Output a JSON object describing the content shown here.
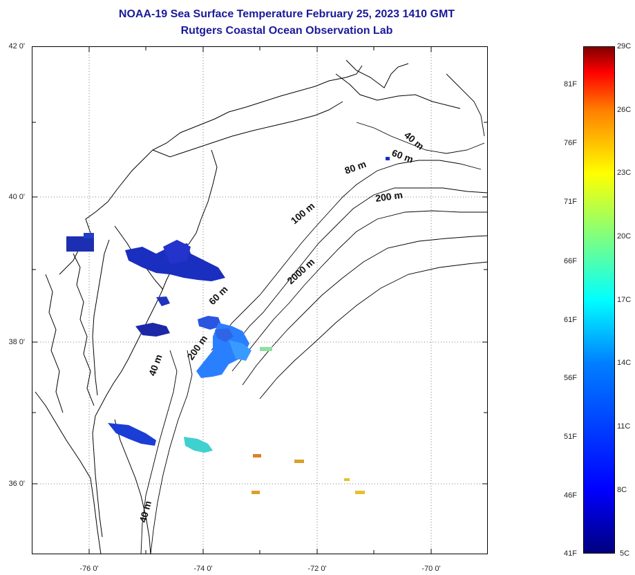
{
  "title": {
    "line1": "NOAA-19 Sea Surface Temperature February 25, 2023 1410 GMT",
    "line2": "Rutgers Coastal Ocean Observation Lab"
  },
  "axes": {
    "lat_labels": [
      "42 0'",
      "40 0'",
      "38 0'",
      "36 0'"
    ],
    "lon_labels": [
      "-76 0'",
      "-74 0'",
      "-72 0'",
      "-70 0'"
    ]
  },
  "isobaths": {
    "labels": [
      "40 m",
      "60 m",
      "80 m",
      "200 m",
      "100 m",
      "2000 m",
      "60 m",
      "200 m",
      "40 m",
      "40 m"
    ]
  },
  "colorbar": {
    "celsius_labels": [
      "29C",
      "26C",
      "23C",
      "20C",
      "17C",
      "14C",
      "11C",
      "8C",
      "5C"
    ],
    "fahrenheit_labels": [
      "81F",
      "76F",
      "71F",
      "66F",
      "61F",
      "56F",
      "51F",
      "46F",
      "41F"
    ],
    "range_c": [
      5,
      29
    ],
    "colormap": [
      "#00007f",
      "#0000ff",
      "#007fff",
      "#00ffff",
      "#7fff7f",
      "#ffff00",
      "#ff7f00",
      "#ff0000",
      "#7f0000"
    ]
  },
  "colors": {
    "title": "#1a1a9a",
    "cold_water": "#1a2fbf",
    "cool_water": "#2a7fff",
    "warm_patch": "#ff9a2a"
  }
}
